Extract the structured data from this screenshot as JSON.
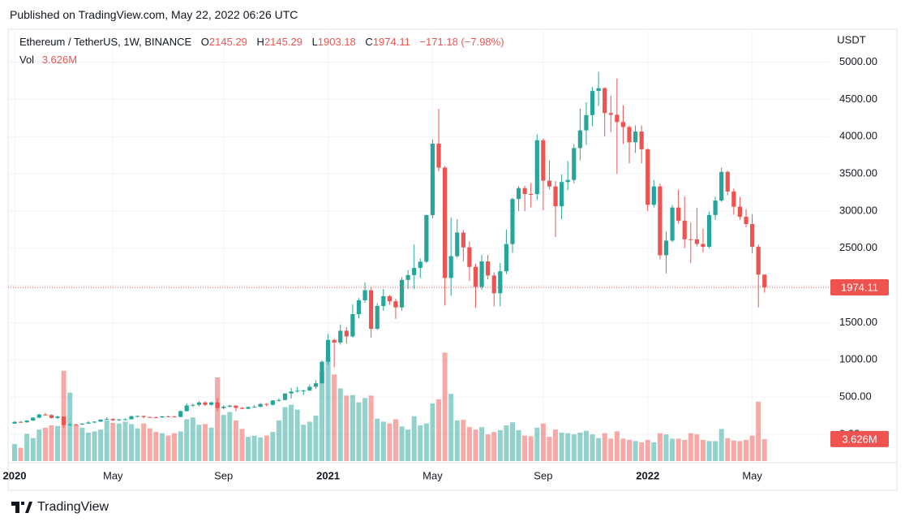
{
  "chart_data": {
    "type": "candlestick",
    "published": "Published on TradingView.com, May 22, 2022 06:26 UTC",
    "title": "Ethereum / TetherUS, 1W, BINANCE",
    "ohlc_labels": [
      "O",
      "H",
      "L",
      "C"
    ],
    "change_label": "−171.18 (−7.98%)",
    "volume_title": "Vol",
    "volume_label": "3.626M",
    "currency": "USDT",
    "brand": "TradingView",
    "up_color": "#26a69a",
    "down_color": "#ef5350",
    "ylim": [
      -360,
      5420
    ],
    "volume_ylim": [
      0,
      71
    ],
    "yticks": [
      {
        "value": 0,
        "label": "0.00"
      },
      {
        "value": 500,
        "label": "500.00"
      },
      {
        "value": 1000,
        "label": "1000.00"
      },
      {
        "value": 1500,
        "label": "1500.00"
      },
      {
        "value": 2000,
        "label": "2000.00"
      },
      {
        "value": 2500,
        "label": "2500.00"
      },
      {
        "value": 3000,
        "label": "3000.00"
      },
      {
        "value": 3500,
        "label": "3500.00"
      },
      {
        "value": 4000,
        "label": "4000.00"
      },
      {
        "value": 4500,
        "label": "4500.00"
      },
      {
        "value": 5000,
        "label": "5000.00"
      }
    ],
    "grid": true,
    "categories": [
      "2020",
      null,
      null,
      null,
      null,
      null,
      null,
      null,
      null,
      null,
      null,
      null,
      null,
      null,
      null,
      null,
      "May",
      null,
      null,
      null,
      null,
      null,
      null,
      null,
      null,
      null,
      null,
      null,
      null,
      null,
      null,
      null,
      null,
      null,
      "Sep",
      null,
      null,
      null,
      null,
      null,
      null,
      null,
      null,
      null,
      null,
      null,
      null,
      null,
      null,
      null,
      null,
      "2021",
      null,
      null,
      null,
      null,
      null,
      null,
      null,
      null,
      null,
      null,
      null,
      null,
      null,
      null,
      null,
      null,
      "May",
      null,
      null,
      null,
      null,
      null,
      null,
      null,
      null,
      null,
      null,
      null,
      null,
      null,
      null,
      null,
      null,
      null,
      "Sep",
      null,
      null,
      null,
      null,
      null,
      null,
      null,
      null,
      null,
      null,
      null,
      null,
      null,
      null,
      null,
      null,
      "2022",
      null,
      null,
      null,
      null,
      null,
      null,
      null,
      null,
      null,
      null,
      null,
      null,
      null,
      null,
      null,
      null,
      "May",
      null,
      null
    ],
    "open": [
      143,
      167,
      161,
      184,
      223,
      265,
      259,
      219,
      238,
      124,
      132,
      131,
      143,
      158,
      170,
      197,
      206,
      188,
      200,
      201,
      243,
      246,
      232,
      228,
      225,
      241,
      239,
      233,
      311,
      387,
      395,
      428,
      396,
      428,
      352,
      371,
      385,
      355,
      342,
      367,
      369,
      407,
      396,
      454,
      461,
      548,
      575,
      586,
      588,
      638,
      685,
      975,
      1268,
      1232,
      1391,
      1315,
      1614,
      1800,
      1935,
      1417,
      1724,
      1855,
      1787,
      1704,
      2074,
      2138,
      2234,
      2319,
      2945,
      3905,
      3582,
      2100,
      2393,
      2710,
      2511,
      2249,
      1980,
      2322,
      2133,
      1895,
      2190,
      2555,
      3161,
      3307,
      3228,
      3226,
      3950,
      3407,
      3329,
      3063,
      3389,
      3417,
      3845,
      4083,
      4288,
      4612,
      4650,
      4316,
      4292,
      4195,
      4128,
      3923,
      4067,
      3829,
      3083,
      3330,
      2406,
      2602,
      3046,
      2870,
      2620,
      2619,
      2557,
      2518,
      2946,
      3140,
      3525,
      3262,
      3057,
      2922,
      2825,
      2518,
      2145.29
    ],
    "high": [
      176,
      178,
      190,
      229,
      272,
      288,
      268,
      252,
      240,
      150,
      145,
      148,
      175,
      174,
      200,
      228,
      215,
      206,
      216,
      250,
      253,
      250,
      238,
      237,
      245,
      250,
      245,
      320,
      416,
      410,
      445,
      442,
      436,
      488,
      390,
      395,
      390,
      365,
      375,
      392,
      420,
      417,
      458,
      482,
      550,
      625,
      635,
      601,
      668,
      725,
      990,
      1350,
      1280,
      1475,
      1440,
      1745,
      1830,
      2040,
      1985,
      1760,
      1950,
      1870,
      1820,
      2110,
      2205,
      2548,
      2360,
      2950,
      3960,
      4372,
      3600,
      2910,
      2890,
      2745,
      2590,
      2290,
      2410,
      2410,
      2175,
      2300,
      2750,
      3180,
      3335,
      3340,
      3375,
      4030,
      3975,
      3680,
      3400,
      3490,
      3670,
      3900,
      4375,
      4460,
      4665,
      4870,
      4660,
      4550,
      4780,
      4420,
      4150,
      4150,
      4150,
      3840,
      3415,
      3370,
      2725,
      3080,
      3285,
      3195,
      2845,
      3040,
      2760,
      2988,
      3190,
      3580,
      3545,
      3300,
      3190,
      3025,
      2960,
      2550,
      2145.29
    ],
    "low": [
      140,
      152,
      155,
      180,
      215,
      250,
      210,
      206,
      86,
      110,
      122,
      124,
      140,
      150,
      166,
      194,
      178,
      176,
      192,
      199,
      224,
      214,
      220,
      218,
      222,
      236,
      226,
      230,
      305,
      365,
      375,
      380,
      384,
      310,
      335,
      358,
      308,
      335,
      335,
      360,
      362,
      375,
      388,
      438,
      456,
      480,
      560,
      530,
      580,
      610,
      680,
      935,
      900,
      1205,
      1220,
      1300,
      1555,
      1765,
      1300,
      1400,
      1660,
      1740,
      1550,
      1660,
      1950,
      1950,
      2100,
      2300,
      2900,
      3530,
      1730,
      1860,
      2370,
      2325,
      2060,
      1700,
      1940,
      2080,
      1718,
      1720,
      2150,
      2440,
      3000,
      3000,
      3050,
      3150,
      3010,
      3290,
      2650,
      2890,
      3280,
      3370,
      3680,
      3890,
      4140,
      4410,
      4000,
      4060,
      3500,
      3900,
      3640,
      3780,
      3640,
      3000,
      3050,
      2350,
      2160,
      2580,
      2830,
      2500,
      2300,
      2525,
      2445,
      2500,
      2880,
      3120,
      3210,
      2950,
      2880,
      2780,
      2430,
      1704,
      1903.18
    ],
    "close": [
      167,
      161,
      184,
      223,
      265,
      259,
      219,
      238,
      124,
      132,
      131,
      143,
      158,
      170,
      197,
      206,
      188,
      200,
      201,
      243,
      246,
      232,
      228,
      225,
      241,
      239,
      233,
      311,
      387,
      395,
      428,
      396,
      428,
      352,
      371,
      385,
      355,
      342,
      367,
      369,
      407,
      396,
      454,
      461,
      548,
      575,
      586,
      588,
      638,
      685,
      975,
      1268,
      1232,
      1391,
      1315,
      1614,
      1800,
      1935,
      1417,
      1724,
      1855,
      1787,
      1704,
      2074,
      2138,
      2234,
      2319,
      2945,
      3905,
      3582,
      2100,
      2393,
      2710,
      2511,
      2249,
      1980,
      2322,
      2133,
      1895,
      2190,
      2555,
      3161,
      3307,
      3228,
      3226,
      3950,
      3407,
      3329,
      3063,
      3389,
      3417,
      3845,
      4083,
      4288,
      4612,
      4650,
      4316,
      4292,
      4195,
      4128,
      3923,
      4067,
      3829,
      3083,
      3330,
      2406,
      2602,
      3046,
      2870,
      2620,
      2619,
      2557,
      2518,
      2946,
      3140,
      3525,
      3262,
      3057,
      2922,
      2825,
      2518,
      2145.29,
      1974.11
    ],
    "volume": [
      2.8,
      2.2,
      4.5,
      3.8,
      5.2,
      5.5,
      5.9,
      5.8,
      14.9,
      11.3,
      6.0,
      5.5,
      4.7,
      4.9,
      5.2,
      6.7,
      6.3,
      6.2,
      6.5,
      6.1,
      5.4,
      6.2,
      5.4,
      4.8,
      4.6,
      4.2,
      4.6,
      4.9,
      6.9,
      7.2,
      6.0,
      6.1,
      5.5,
      13.8,
      7.6,
      8.1,
      6.7,
      5.3,
      4.0,
      4.2,
      3.9,
      4.2,
      4.8,
      6.7,
      8.9,
      9.3,
      8.5,
      6.0,
      6.5,
      7.5,
      14.8,
      17.2,
      14.3,
      12.0,
      10.8,
      10.9,
      9.7,
      10.4,
      10.8,
      7.0,
      6.5,
      6.2,
      6.9,
      5.7,
      5.2,
      7.4,
      5.9,
      6.2,
      9.5,
      10.2,
      17.9,
      11.1,
      6.7,
      6.8,
      5.6,
      5.2,
      5.6,
      4.4,
      4.8,
      5.1,
      5.9,
      6.4,
      5.1,
      4.2,
      4.1,
      5.5,
      6.2,
      4.0,
      5.2,
      4.7,
      4.6,
      4.4,
      4.7,
      5.0,
      4.4,
      3.8,
      4.6,
      3.7,
      4.9,
      3.7,
      3.5,
      3.3,
      3.1,
      3.5,
      3.1,
      4.6,
      4.4,
      3.7,
      3.7,
      3.5,
      4.6,
      4.4,
      3.5,
      3.3,
      3.3,
      5.3,
      3.8,
      3.4,
      3.3,
      3.5,
      4.2,
      9.8,
      3.626
    ]
  }
}
